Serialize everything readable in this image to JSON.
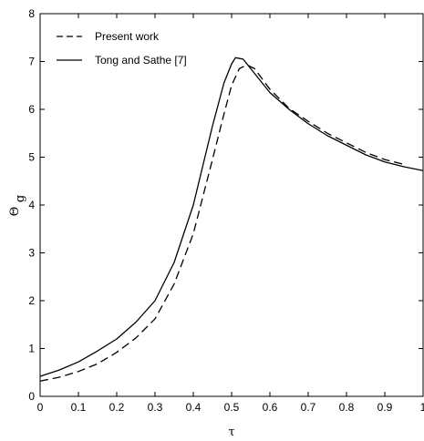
{
  "chart_data": {
    "type": "line",
    "xlabel": "τ",
    "ylabel": "Θ",
    "ylabel_subscript": "g",
    "xlim": [
      0,
      1
    ],
    "ylim": [
      0,
      8
    ],
    "x_ticks": [
      0,
      0.1,
      0.2,
      0.3,
      0.4,
      0.5,
      0.6,
      0.7,
      0.8,
      0.9,
      1
    ],
    "x_tick_labels": [
      "0",
      "0.1",
      "0.2",
      "0.3",
      "0.4",
      "0.5",
      "0.6",
      "0.7",
      "0.8",
      "0.9",
      "1"
    ],
    "y_ticks": [
      0,
      1,
      2,
      3,
      4,
      5,
      6,
      7,
      8
    ],
    "y_tick_labels": [
      "0",
      "1",
      "2",
      "3",
      "4",
      "5",
      "6",
      "7",
      "8"
    ],
    "grid": false,
    "legend_position": "top-left",
    "series": [
      {
        "name": "Present work",
        "style": "dashed",
        "color": "#000000",
        "x": [
          0,
          0.05,
          0.1,
          0.15,
          0.2,
          0.25,
          0.3,
          0.35,
          0.4,
          0.45,
          0.48,
          0.5,
          0.52,
          0.54,
          0.56,
          0.6,
          0.65,
          0.7,
          0.75,
          0.8,
          0.85,
          0.9,
          0.95
        ],
        "y": [
          0.32,
          0.4,
          0.52,
          0.68,
          0.92,
          1.22,
          1.62,
          2.35,
          3.4,
          4.95,
          5.9,
          6.5,
          6.85,
          6.93,
          6.85,
          6.42,
          6.02,
          5.75,
          5.5,
          5.3,
          5.1,
          4.95,
          4.85
        ]
      },
      {
        "name": "Tong and Sathe [7]",
        "style": "solid",
        "color": "#000000",
        "x": [
          0,
          0.05,
          0.1,
          0.15,
          0.2,
          0.25,
          0.3,
          0.35,
          0.4,
          0.45,
          0.48,
          0.5,
          0.51,
          0.53,
          0.55,
          0.6,
          0.65,
          0.7,
          0.75,
          0.8,
          0.85,
          0.9,
          0.95,
          1
        ],
        "y": [
          0.42,
          0.55,
          0.72,
          0.95,
          1.2,
          1.55,
          2.0,
          2.8,
          4.0,
          5.65,
          6.55,
          6.95,
          7.08,
          7.05,
          6.85,
          6.35,
          6.0,
          5.7,
          5.45,
          5.25,
          5.05,
          4.9,
          4.8,
          4.72
        ]
      }
    ]
  }
}
